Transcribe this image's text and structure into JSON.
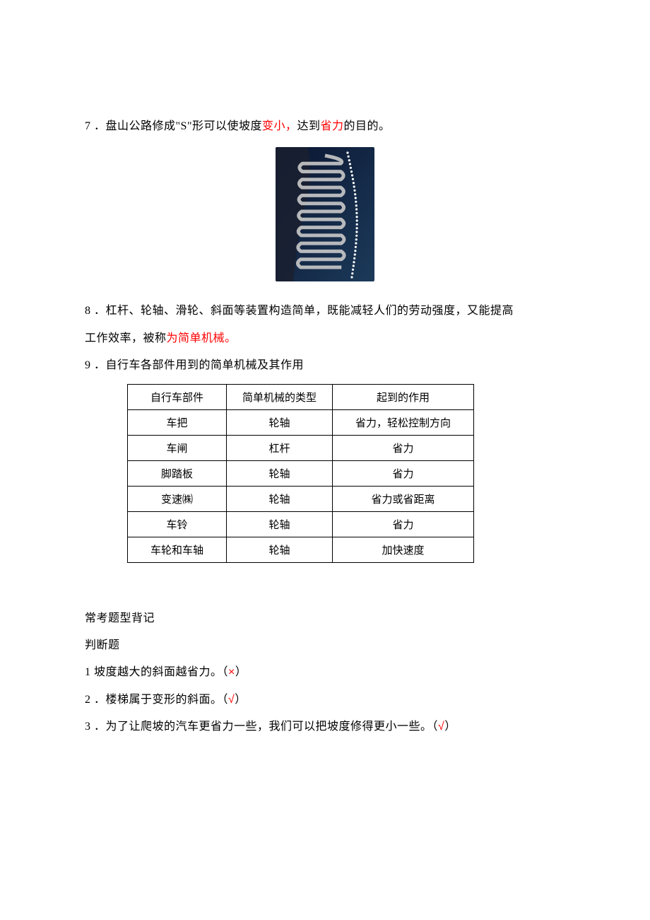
{
  "q7": {
    "num": "7",
    "prefix": "．盘山公路修成\"",
    "s_letter": "S",
    "mid": "\"形可以使坡度",
    "red1": "变小，",
    "after": "达到",
    "red2": "省力",
    "tail": "的目的。"
  },
  "mountain_svg": {
    "width": 140,
    "height": 190,
    "bg_gradient_from": "#0a1530",
    "bg_gradient_to": "#1c3a5a",
    "road_color": "#c9c9c9",
    "dot_color": "#ffffff",
    "dark_rock": "#1a2030"
  },
  "q8": {
    "num": "8",
    "line1_a": "．杠杆、轮轴、滑轮、斜面等装置构造简单，既能减轻人们的劳动强度，又能提高",
    "line2_a": "工作效率，被称",
    "red": "为简单机械。"
  },
  "q9": {
    "num": "9",
    "text": "．自行车各部件用到的简单机械及其作用"
  },
  "table": {
    "headers": [
      "自行车部件",
      "简单机械的类型",
      "起到的作用"
    ],
    "rows": [
      [
        "车把",
        "轮轴",
        "省力，轻松控制方向"
      ],
      [
        "车闸",
        "杠杆",
        "省力"
      ],
      [
        "脚踏板",
        "轮轴",
        "省力"
      ],
      [
        "变速㈱",
        "轮轴",
        "省力或省距离"
      ],
      [
        "车铃",
        "轮轴",
        "省力"
      ],
      [
        "车轮和车轴",
        "轮轴",
        "加快速度"
      ]
    ],
    "border_color": "#000000",
    "font_size": 15
  },
  "exam": {
    "title1": "常考题型背记",
    "title2": "判断题",
    "items": [
      {
        "num": "1",
        "text": " 坡度越大的斜面越省力。（",
        "mark": "×",
        "close": "）"
      },
      {
        "num": "2",
        "text": " ．楼梯属于变形的斜面。（",
        "mark": "√",
        "close": "）"
      },
      {
        "num": "3",
        "text": " ．为了让爬坡的汽车更省力一些，我们可以把坡度修得更小一些。（",
        "mark": "√",
        "close": "）"
      }
    ]
  }
}
